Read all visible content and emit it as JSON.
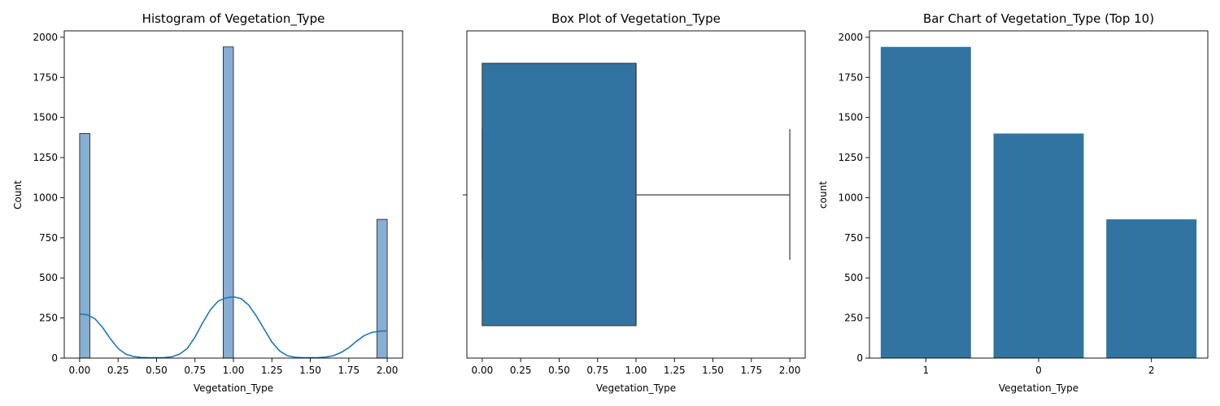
{
  "chart_data": [
    {
      "type": "bar",
      "subtype": "histogram",
      "title": "Histogram of Vegetation_Type",
      "xlabel": "Vegetation_Type",
      "ylabel": "Count",
      "xlim": [
        -0.1,
        2.1
      ],
      "ylim": [
        0,
        2040
      ],
      "xticks": [
        "0.00",
        "0.25",
        "0.50",
        "0.75",
        "1.00",
        "1.25",
        "1.50",
        "1.75",
        "2.00"
      ],
      "yticks": [
        "0",
        "250",
        "500",
        "750",
        "1000",
        "1250",
        "1500",
        "1750",
        "2000"
      ],
      "bins": [
        {
          "x0": 0.0,
          "x1": 0.0667,
          "count": 1400
        },
        {
          "x0": 0.9333,
          "x1": 1.0,
          "count": 1940
        },
        {
          "x0": 1.9333,
          "x1": 2.0,
          "count": 865
        }
      ],
      "kde": [
        [
          0.0,
          275
        ],
        [
          0.05,
          270
        ],
        [
          0.1,
          245
        ],
        [
          0.15,
          190
        ],
        [
          0.2,
          120
        ],
        [
          0.25,
          60
        ],
        [
          0.3,
          25
        ],
        [
          0.35,
          10
        ],
        [
          0.4,
          4
        ],
        [
          0.45,
          2
        ],
        [
          0.5,
          2
        ],
        [
          0.55,
          3
        ],
        [
          0.6,
          8
        ],
        [
          0.65,
          25
        ],
        [
          0.7,
          60
        ],
        [
          0.75,
          130
        ],
        [
          0.8,
          220
        ],
        [
          0.85,
          300
        ],
        [
          0.9,
          355
        ],
        [
          0.95,
          375
        ],
        [
          1.0,
          382
        ],
        [
          1.05,
          370
        ],
        [
          1.1,
          330
        ],
        [
          1.15,
          260
        ],
        [
          1.2,
          180
        ],
        [
          1.25,
          100
        ],
        [
          1.3,
          45
        ],
        [
          1.35,
          15
        ],
        [
          1.4,
          5
        ],
        [
          1.45,
          2
        ],
        [
          1.5,
          2
        ],
        [
          1.55,
          3
        ],
        [
          1.6,
          6
        ],
        [
          1.65,
          15
        ],
        [
          1.7,
          35
        ],
        [
          1.75,
          65
        ],
        [
          1.8,
          105
        ],
        [
          1.85,
          140
        ],
        [
          1.9,
          160
        ],
        [
          1.95,
          168
        ],
        [
          2.0,
          170
        ]
      ],
      "colors": {
        "bar": "#87aed3",
        "kde": "#1f77b4"
      }
    },
    {
      "type": "box",
      "title": "Box Plot of Vegetation_Type",
      "xlabel": "Vegetation_Type",
      "xlim": [
        -0.1,
        2.1
      ],
      "xticks": [
        "0.00",
        "0.25",
        "0.50",
        "0.75",
        "1.00",
        "1.25",
        "1.50",
        "1.75",
        "2.00"
      ],
      "stats": {
        "whisker_low": 0,
        "q1": 0,
        "median": 1,
        "q3": 1,
        "whisker_high": 2
      },
      "colors": {
        "box": "#3274a1",
        "line": "#3d3d3d"
      }
    },
    {
      "type": "bar",
      "title": "Bar Chart of Vegetation_Type (Top 10)",
      "xlabel": "Vegetation_Type",
      "ylabel": "count",
      "categories": [
        "1",
        "0",
        "2"
      ],
      "values": [
        1940,
        1400,
        865
      ],
      "ylim": [
        0,
        2040
      ],
      "yticks": [
        "0",
        "250",
        "500",
        "750",
        "1000",
        "1250",
        "1500",
        "1750",
        "2000"
      ],
      "colors": {
        "bar": "#3274a1"
      }
    }
  ]
}
